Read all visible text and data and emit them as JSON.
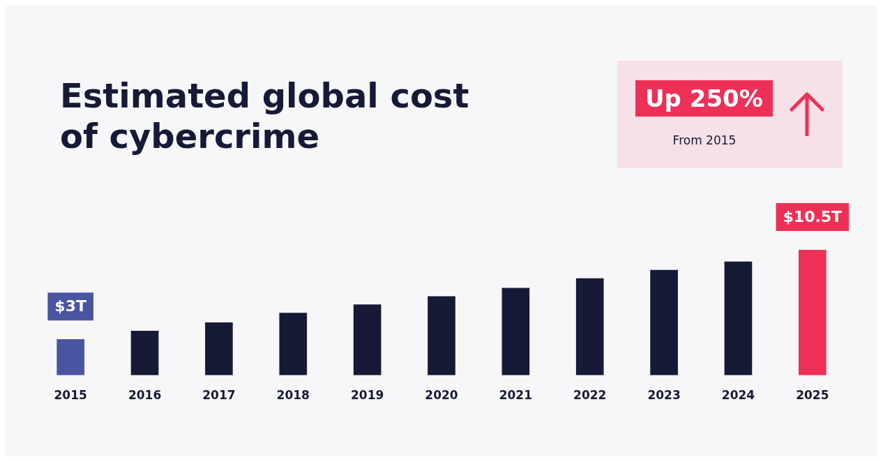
{
  "chart_data": {
    "type": "bar",
    "title": "Estimated global cost of cybercrime",
    "tick_labels": "x",
    "categories": [
      "2015",
      "2016",
      "2017",
      "2018",
      "2019",
      "2020",
      "2021",
      "2022",
      "2023",
      "2024",
      "2025"
    ],
    "values": [
      3,
      3.7,
      4.4,
      5.2,
      5.9,
      6.6,
      7.3,
      8.1,
      8.8,
      9.5,
      10.5
    ],
    "colors": [
      "#4a55a2",
      "#161a36",
      "#161a36",
      "#161a36",
      "#161a36",
      "#161a36",
      "#161a36",
      "#161a36",
      "#161a36",
      "#161a36",
      "#ef3056"
    ],
    "value_labels": [
      "$3T",
      null,
      null,
      null,
      null,
      null,
      null,
      null,
      null,
      null,
      "$10.5T"
    ],
    "annotations": [
      "Up 250%",
      "From 2015"
    ],
    "grid": false,
    "legend": false
  }
}
